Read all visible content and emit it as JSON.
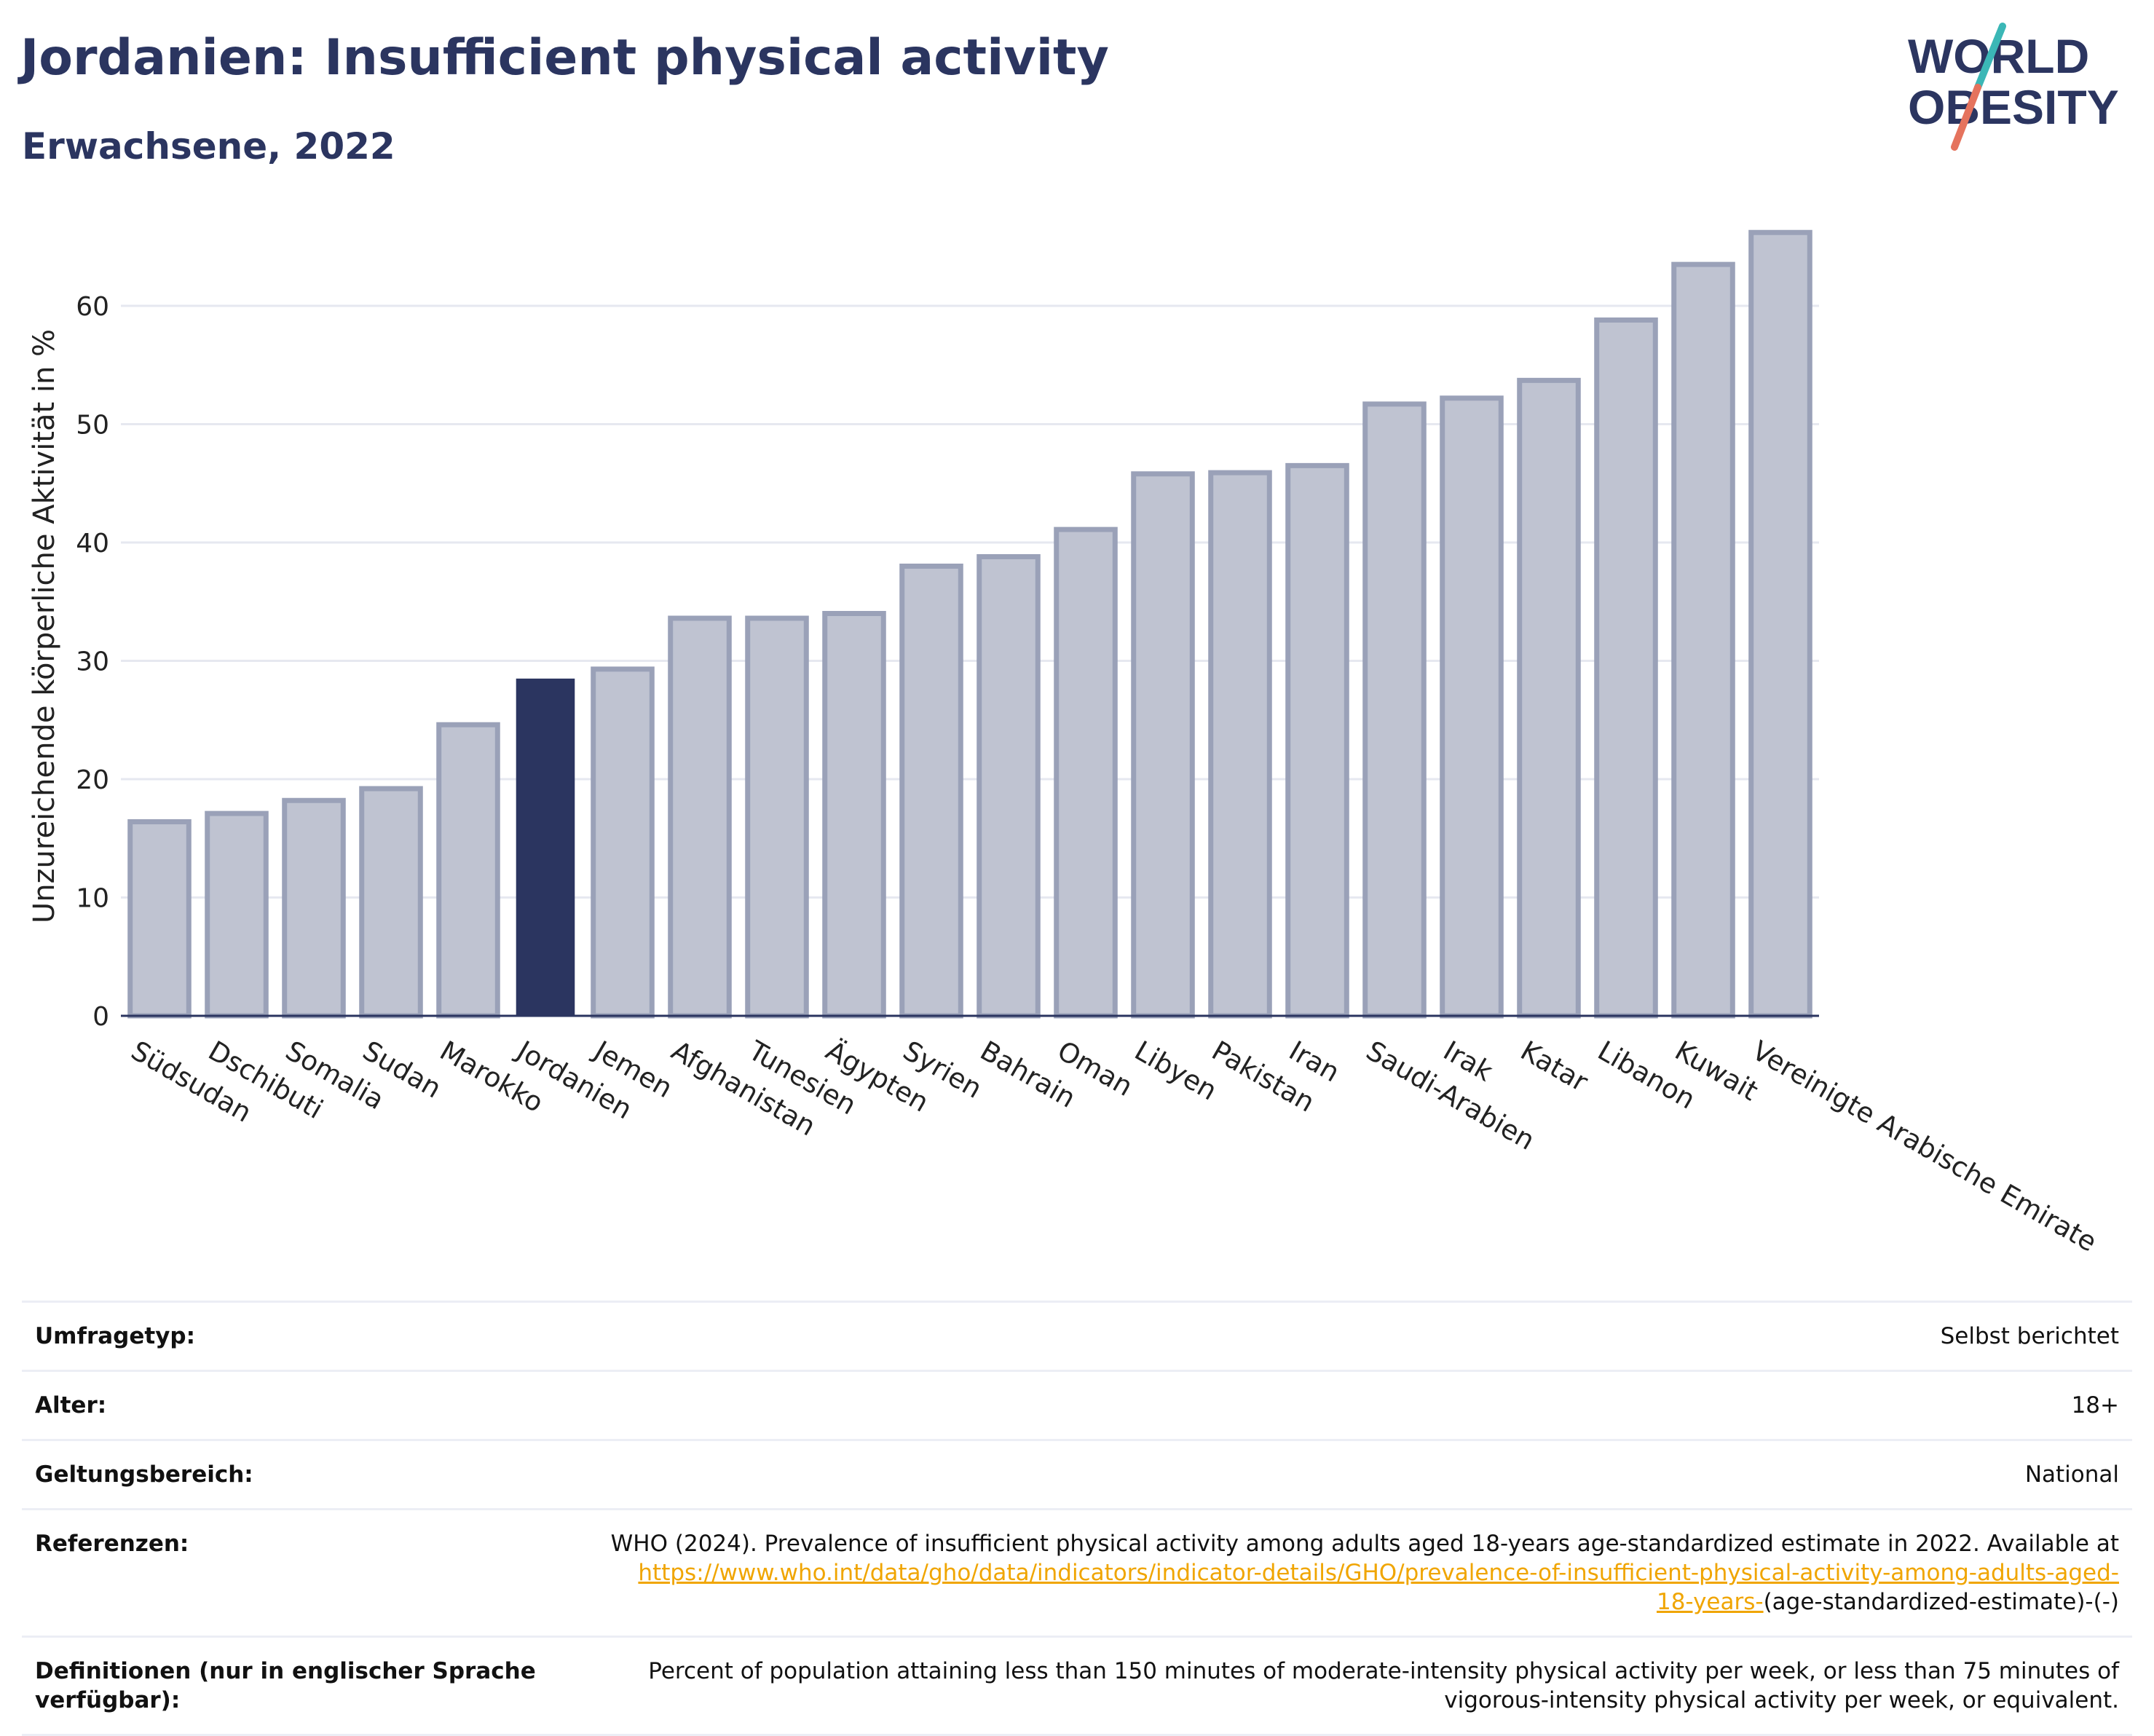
{
  "header": {
    "title": "Jordanien: Insufficient physical activity",
    "subtitle": "Erwachsene, 2022"
  },
  "logo": {
    "line1": "WORLD",
    "line2": "OBESITY",
    "colors": {
      "text": "#2b3560",
      "slash_teal": "#3bb7b6",
      "slash_coral": "#e5735d"
    }
  },
  "colors": {
    "highlight_bar": "#2b3560",
    "other_bar_fill": "#bfc3d1",
    "other_bar_stroke": "#9aa1b8",
    "gridline": "#e6e8f0",
    "link": "#f0a500"
  },
  "chart_data": {
    "type": "bar",
    "ylabel": "Unzureichende körperliche Aktivität in %",
    "xlabel": "",
    "ylim": [
      0,
      68
    ],
    "yticks": [
      0,
      10,
      20,
      30,
      40,
      50,
      60
    ],
    "grid": true,
    "highlight": "Jordanien",
    "categories": [
      "Südsudan",
      "Dschibuti",
      "Somalia",
      "Sudan",
      "Marokko",
      "Jordanien",
      "Jemen",
      "Afghanistan",
      "Tunesien",
      "Ägypten",
      "Syrien",
      "Bahrain",
      "Oman",
      "Libyen",
      "Pakistan",
      "Iran",
      "Saudi-Arabien",
      "Irak",
      "Katar",
      "Libanon",
      "Kuwait",
      "Vereinigte Arabische Emirate"
    ],
    "values": [
      16.4,
      17.1,
      18.2,
      19.2,
      24.6,
      28.5,
      29.3,
      33.6,
      33.6,
      34.0,
      38.0,
      38.8,
      41.1,
      45.8,
      45.9,
      46.5,
      51.7,
      52.2,
      53.7,
      58.8,
      63.5,
      66.2
    ]
  },
  "info": {
    "survey_type": {
      "label": "Umfragetyp:",
      "value": "Selbst berichtet"
    },
    "age": {
      "label": "Alter:",
      "value": "18+"
    },
    "scope": {
      "label": "Geltungsbereich:",
      "value": "National"
    },
    "references": {
      "label": "Referenzen:",
      "text": "WHO (2024). Prevalence of insufficient physical activity among adults aged 18-years age-standardized estimate in 2022. Available at",
      "link_line1": "https://www.who.int/data/gho/data/indicators/indicator-details/GHO/prevalence-of-insufficient-physical-activity-among-adults-aged-",
      "link_line2": "18-years-",
      "suffix": "(age-standardized-estimate)-(-)"
    },
    "definitions": {
      "label": "Definitionen (nur in englischer Sprache verfügbar):",
      "value": "Percent of population attaining less than 150 minutes of moderate-intensity physical activity per week, or less than 75 minutes of vigorous-intensity physical activity per week, or equivalent."
    }
  }
}
